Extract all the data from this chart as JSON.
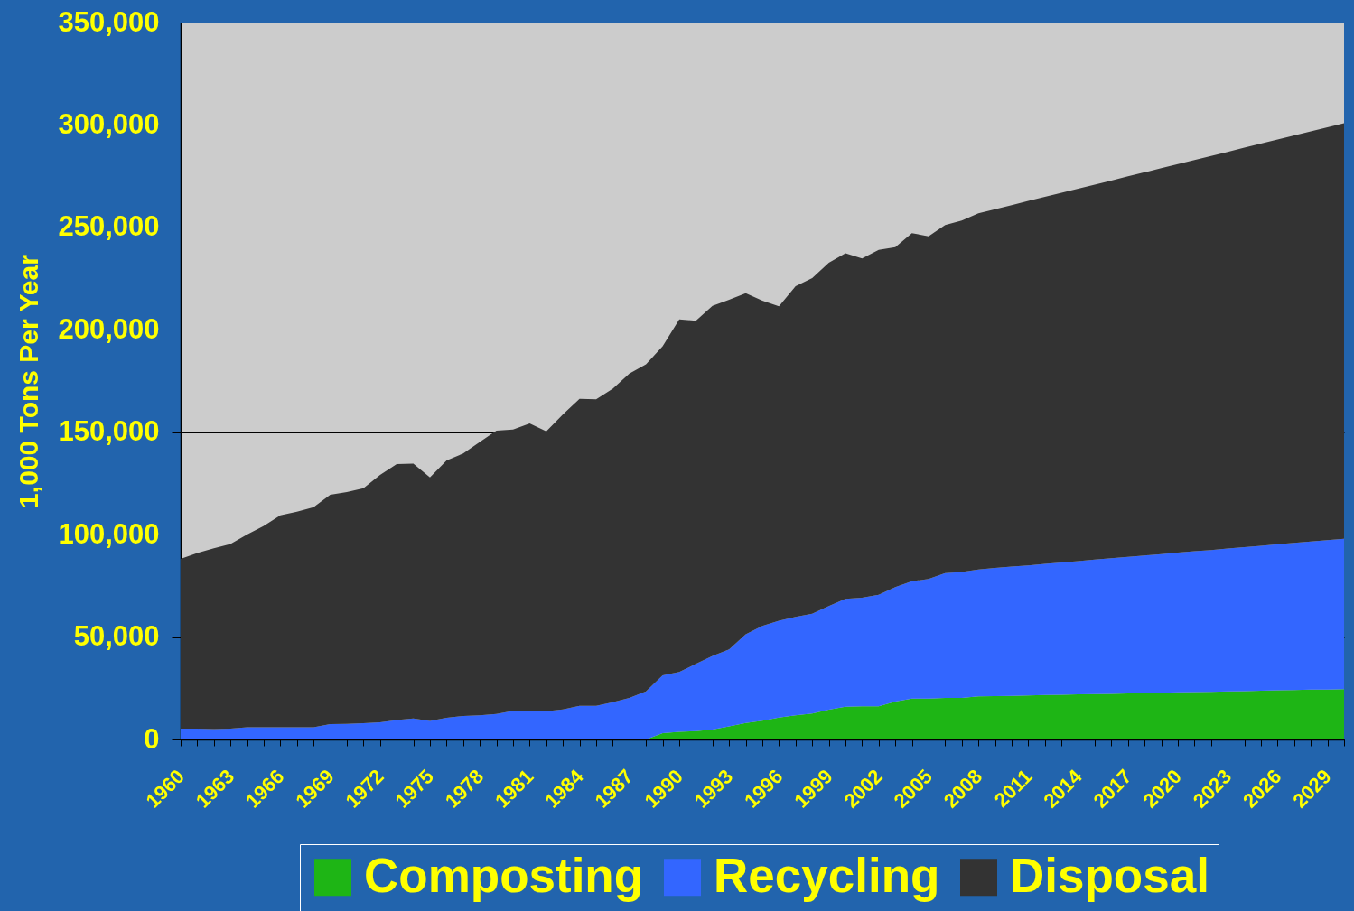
{
  "chart_data": {
    "type": "area",
    "stacked": true,
    "ylabel": "1,000 Tons Per Year",
    "categories": [
      "1960",
      null,
      null,
      "1963",
      null,
      null,
      "1966",
      null,
      null,
      "1969",
      null,
      null,
      "1972",
      null,
      null,
      "1975",
      null,
      null,
      "1978",
      null,
      null,
      "1981",
      null,
      null,
      "1984",
      null,
      null,
      "1987",
      null,
      null,
      "1990",
      null,
      null,
      "1993",
      null,
      null,
      "1996",
      null,
      null,
      "1999",
      null,
      null,
      "2002",
      null,
      null,
      "2005",
      null,
      null,
      "2008",
      null,
      null,
      "2011",
      null,
      null,
      "2014",
      null,
      null,
      "2017",
      null,
      null,
      "2020",
      null,
      null,
      "2023",
      null,
      null,
      "2026",
      null,
      null,
      "2029",
      null
    ],
    "series": [
      {
        "name": "Composting",
        "color": "#1eb515",
        "values": [
          0,
          0,
          0,
          0,
          0,
          0,
          0,
          0,
          0,
          0,
          0,
          0,
          0,
          0,
          0,
          0,
          0,
          0,
          0,
          0,
          0,
          0,
          0,
          0,
          0,
          0,
          0,
          0,
          0,
          3100,
          3800,
          4100,
          4800,
          6400,
          8000,
          9100,
          10700,
          11800,
          12700,
          14500,
          16000,
          16200,
          16200,
          18500,
          19900,
          19900,
          20300,
          20300,
          21000,
          21200,
          21300,
          21500,
          21700,
          21800,
          22000,
          22100,
          22300,
          22500,
          22600,
          22800,
          23000,
          23100,
          23300,
          23500,
          23600,
          23800,
          24000,
          24100,
          24300,
          24400,
          24600
        ]
      },
      {
        "name": "Recycling",
        "color": "#3366ff",
        "values": [
          5300,
          5300,
          5100,
          5300,
          6000,
          6000,
          6000,
          5900,
          6000,
          7500,
          7600,
          7900,
          8400,
          9500,
          10300,
          9000,
          10600,
          11500,
          11800,
          12500,
          14000,
          14100,
          13800,
          14700,
          16400,
          16400,
          18200,
          20300,
          23500,
          28200,
          29100,
          32800,
          36000,
          37600,
          43300,
          46300,
          47300,
          48000,
          48700,
          50600,
          52700,
          53000,
          54400,
          55900,
          57300,
          58500,
          60900,
          61500,
          62000,
          62500,
          63100,
          63500,
          64000,
          64600,
          65100,
          65700,
          66200,
          66600,
          67200,
          67700,
          68200,
          68800,
          69200,
          69700,
          70300,
          70800,
          71300,
          71900,
          72300,
          72900,
          73400
        ]
      },
      {
        "name": "Disposal",
        "color": "#333333",
        "values": [
          82900,
          85700,
          88200,
          90100,
          94100,
          98200,
          103400,
          105300,
          107400,
          112000,
          113200,
          114800,
          120800,
          124900,
          124400,
          118900,
          125600,
          128100,
          133500,
          138300,
          137300,
          140200,
          136600,
          144000,
          149900,
          149700,
          153100,
          158300,
          159700,
          160700,
          172200,
          167500,
          170900,
          170700,
          166600,
          158800,
          153500,
          161500,
          163900,
          167700,
          168700,
          165600,
          168400,
          166000,
          170000,
          167200,
          170000,
          171600,
          173900,
          175200,
          176500,
          177900,
          179200,
          180500,
          181800,
          183100,
          184400,
          185800,
          187100,
          188400,
          189700,
          191000,
          192400,
          193700,
          195000,
          196300,
          197600,
          198900,
          200300,
          201600,
          202900
        ]
      }
    ],
    "ylim": [
      0,
      350000
    ],
    "yticks": [
      0,
      {
        "value": 50000,
        "label": "50,000"
      },
      {
        "value": 100000,
        "label": "100,000"
      },
      {
        "value": 150000,
        "label": "150,000"
      },
      {
        "value": 200000,
        "label": "200,000"
      },
      {
        "value": 250000,
        "label": "250,000"
      },
      {
        "value": 300000,
        "label": "300,000"
      },
      {
        "value": 350000,
        "label": "350,000"
      }
    ],
    "grid": "y",
    "legend": "bottom"
  }
}
